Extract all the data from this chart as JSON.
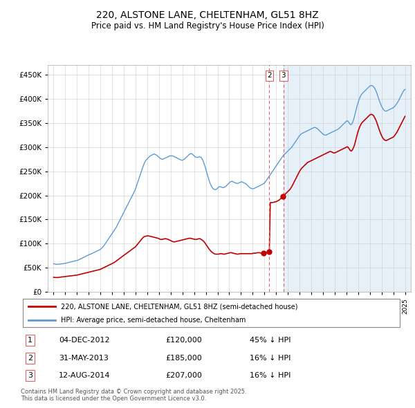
{
  "title": "220, ALSTONE LANE, CHELTENHAM, GL51 8HZ",
  "subtitle": "Price paid vs. HM Land Registry's House Price Index (HPI)",
  "ytick_values": [
    0,
    50000,
    100000,
    150000,
    200000,
    250000,
    300000,
    350000,
    400000,
    450000
  ],
  "ylim": [
    0,
    470000
  ],
  "xlim_start": 1994.5,
  "xlim_end": 2025.5,
  "hpi_color": "#5b9bd5",
  "hpi_alpha": 1.0,
  "price_color": "#c00000",
  "vline_color": "#e06060",
  "shade_color": "#ddeeff",
  "legend_label_price": "220, ALSTONE LANE, CHELTENHAM, GL51 8HZ (semi-detached house)",
  "legend_label_hpi": "HPI: Average price, semi-detached house, Cheltenham",
  "transactions": [
    {
      "num": 1,
      "date": "04-DEC-2012",
      "price": 120000,
      "pct": "45%",
      "x_year": 2012.92
    },
    {
      "num": 2,
      "date": "31-MAY-2013",
      "price": 185000,
      "pct": "16%",
      "x_year": 2013.42
    },
    {
      "num": 3,
      "date": "12-AUG-2014",
      "price": 207000,
      "pct": "16%",
      "x_year": 2014.62
    }
  ],
  "footer_line1": "Contains HM Land Registry data © Crown copyright and database right 2025.",
  "footer_line2": "This data is licensed under the Open Government Licence v3.0.",
  "hpi_monthly_x": [
    1995.0,
    1995.083,
    1995.167,
    1995.25,
    1995.333,
    1995.417,
    1995.5,
    1995.583,
    1995.667,
    1995.75,
    1995.833,
    1995.917,
    1996.0,
    1996.083,
    1996.167,
    1996.25,
    1996.333,
    1996.417,
    1996.5,
    1996.583,
    1996.667,
    1996.75,
    1996.833,
    1996.917,
    1997.0,
    1997.083,
    1997.167,
    1997.25,
    1997.333,
    1997.417,
    1997.5,
    1997.583,
    1997.667,
    1997.75,
    1997.833,
    1997.917,
    1998.0,
    1998.083,
    1998.167,
    1998.25,
    1998.333,
    1998.417,
    1998.5,
    1998.583,
    1998.667,
    1998.75,
    1998.833,
    1998.917,
    1999.0,
    1999.083,
    1999.167,
    1999.25,
    1999.333,
    1999.417,
    1999.5,
    1999.583,
    1999.667,
    1999.75,
    1999.833,
    1999.917,
    2000.0,
    2000.083,
    2000.167,
    2000.25,
    2000.333,
    2000.417,
    2000.5,
    2000.583,
    2000.667,
    2000.75,
    2000.833,
    2000.917,
    2001.0,
    2001.083,
    2001.167,
    2001.25,
    2001.333,
    2001.417,
    2001.5,
    2001.583,
    2001.667,
    2001.75,
    2001.833,
    2001.917,
    2002.0,
    2002.083,
    2002.167,
    2002.25,
    2002.333,
    2002.417,
    2002.5,
    2002.583,
    2002.667,
    2002.75,
    2002.833,
    2002.917,
    2003.0,
    2003.083,
    2003.167,
    2003.25,
    2003.333,
    2003.417,
    2003.5,
    2003.583,
    2003.667,
    2003.75,
    2003.833,
    2003.917,
    2004.0,
    2004.083,
    2004.167,
    2004.25,
    2004.333,
    2004.417,
    2004.5,
    2004.583,
    2004.667,
    2004.75,
    2004.833,
    2004.917,
    2005.0,
    2005.083,
    2005.167,
    2005.25,
    2005.333,
    2005.417,
    2005.5,
    2005.583,
    2005.667,
    2005.75,
    2005.833,
    2005.917,
    2006.0,
    2006.083,
    2006.167,
    2006.25,
    2006.333,
    2006.417,
    2006.5,
    2006.583,
    2006.667,
    2006.75,
    2006.833,
    2006.917,
    2007.0,
    2007.083,
    2007.167,
    2007.25,
    2007.333,
    2007.417,
    2007.5,
    2007.583,
    2007.667,
    2007.75,
    2007.833,
    2007.917,
    2008.0,
    2008.083,
    2008.167,
    2008.25,
    2008.333,
    2008.417,
    2008.5,
    2008.583,
    2008.667,
    2008.75,
    2008.833,
    2008.917,
    2009.0,
    2009.083,
    2009.167,
    2009.25,
    2009.333,
    2009.417,
    2009.5,
    2009.583,
    2009.667,
    2009.75,
    2009.833,
    2009.917,
    2010.0,
    2010.083,
    2010.167,
    2010.25,
    2010.333,
    2010.417,
    2010.5,
    2010.583,
    2010.667,
    2010.75,
    2010.833,
    2010.917,
    2011.0,
    2011.083,
    2011.167,
    2011.25,
    2011.333,
    2011.417,
    2011.5,
    2011.583,
    2011.667,
    2011.75,
    2011.833,
    2011.917,
    2012.0,
    2012.083,
    2012.167,
    2012.25,
    2012.333,
    2012.417,
    2012.5,
    2012.583,
    2012.667,
    2012.75,
    2012.833,
    2012.917,
    2013.0,
    2013.083,
    2013.167,
    2013.25,
    2013.333,
    2013.417,
    2013.5,
    2013.583,
    2013.667,
    2013.75,
    2013.833,
    2013.917,
    2014.0,
    2014.083,
    2014.167,
    2014.25,
    2014.333,
    2014.417,
    2014.5,
    2014.583,
    2014.667,
    2014.75,
    2014.833,
    2014.917,
    2015.0,
    2015.083,
    2015.167,
    2015.25,
    2015.333,
    2015.417,
    2015.5,
    2015.583,
    2015.667,
    2015.75,
    2015.833,
    2015.917,
    2016.0,
    2016.083,
    2016.167,
    2016.25,
    2016.333,
    2016.417,
    2016.5,
    2016.583,
    2016.667,
    2016.75,
    2016.833,
    2016.917,
    2017.0,
    2017.083,
    2017.167,
    2017.25,
    2017.333,
    2017.417,
    2017.5,
    2017.583,
    2017.667,
    2017.75,
    2017.833,
    2017.917,
    2018.0,
    2018.083,
    2018.167,
    2018.25,
    2018.333,
    2018.417,
    2018.5,
    2018.583,
    2018.667,
    2018.75,
    2018.833,
    2018.917,
    2019.0,
    2019.083,
    2019.167,
    2019.25,
    2019.333,
    2019.417,
    2019.5,
    2019.583,
    2019.667,
    2019.75,
    2019.833,
    2019.917,
    2020.0,
    2020.083,
    2020.167,
    2020.25,
    2020.333,
    2020.417,
    2020.5,
    2020.583,
    2020.667,
    2020.75,
    2020.833,
    2020.917,
    2021.0,
    2021.083,
    2021.167,
    2021.25,
    2021.333,
    2021.417,
    2021.5,
    2021.583,
    2021.667,
    2021.75,
    2021.833,
    2021.917,
    2022.0,
    2022.083,
    2022.167,
    2022.25,
    2022.333,
    2022.417,
    2022.5,
    2022.583,
    2022.667,
    2022.75,
    2022.833,
    2022.917,
    2023.0,
    2023.083,
    2023.167,
    2023.25,
    2023.333,
    2023.417,
    2023.5,
    2023.583,
    2023.667,
    2023.75,
    2023.833,
    2023.917,
    2024.0,
    2024.083,
    2024.167,
    2024.25,
    2024.333,
    2024.417,
    2024.5,
    2024.583,
    2024.667,
    2024.75,
    2024.833,
    2024.917,
    2025.0
  ],
  "hpi_monthly_y": [
    58000,
    57500,
    57200,
    57000,
    56800,
    57000,
    57200,
    57500,
    57800,
    58000,
    58200,
    58500,
    59000,
    59500,
    60000,
    60500,
    61000,
    61500,
    62000,
    62500,
    63000,
    63500,
    64000,
    64500,
    65000,
    65500,
    66500,
    67500,
    68500,
    69500,
    70500,
    71500,
    72500,
    73500,
    74500,
    75500,
    76500,
    77500,
    78000,
    79000,
    80000,
    81000,
    82000,
    83000,
    84000,
    85000,
    86000,
    87000,
    88000,
    90000,
    92000,
    94000,
    97000,
    100000,
    103000,
    106000,
    109000,
    112000,
    115000,
    118000,
    121000,
    124000,
    127000,
    130000,
    133000,
    137000,
    141000,
    145000,
    149000,
    153000,
    157000,
    161000,
    165000,
    169000,
    173000,
    177000,
    181000,
    185000,
    189000,
    193000,
    197000,
    201000,
    205000,
    209000,
    214000,
    220000,
    226000,
    232000,
    238000,
    244000,
    250000,
    256000,
    262000,
    267000,
    271000,
    274000,
    276000,
    278000,
    280000,
    282000,
    283000,
    284000,
    285000,
    286000,
    285000,
    284000,
    283000,
    281000,
    279000,
    277000,
    276000,
    275000,
    275000,
    276000,
    277000,
    278000,
    279000,
    280000,
    281000,
    282000,
    282000,
    282000,
    282000,
    281000,
    280000,
    279000,
    278000,
    277000,
    276000,
    275000,
    274000,
    273000,
    273000,
    274000,
    275000,
    277000,
    279000,
    281000,
    283000,
    285000,
    286000,
    287000,
    286000,
    284000,
    282000,
    280000,
    279000,
    279000,
    279000,
    280000,
    280000,
    279000,
    276000,
    272000,
    267000,
    261000,
    254000,
    247000,
    240000,
    233000,
    227000,
    222000,
    218000,
    215000,
    213000,
    212000,
    212000,
    213000,
    215000,
    217000,
    218000,
    218000,
    217000,
    216000,
    216000,
    217000,
    218000,
    220000,
    222000,
    224000,
    226000,
    228000,
    229000,
    229000,
    228000,
    227000,
    226000,
    225000,
    225000,
    225000,
    226000,
    227000,
    228000,
    228000,
    227000,
    226000,
    225000,
    224000,
    222000,
    220000,
    218000,
    216000,
    215000,
    214000,
    214000,
    214000,
    215000,
    216000,
    217000,
    218000,
    219000,
    220000,
    221000,
    222000,
    223000,
    224000,
    226000,
    228000,
    231000,
    234000,
    237000,
    240000,
    243000,
    246000,
    249000,
    252000,
    255000,
    258000,
    261000,
    264000,
    267000,
    270000,
    273000,
    276000,
    279000,
    282000,
    284000,
    286000,
    288000,
    290000,
    292000,
    294000,
    296000,
    298000,
    300000,
    303000,
    306000,
    309000,
    312000,
    315000,
    318000,
    321000,
    324000,
    326000,
    328000,
    329000,
    330000,
    331000,
    332000,
    333000,
    334000,
    335000,
    336000,
    337000,
    338000,
    339000,
    340000,
    341000,
    341000,
    340000,
    339000,
    337000,
    335000,
    333000,
    331000,
    329000,
    327000,
    326000,
    325000,
    325000,
    326000,
    327000,
    328000,
    329000,
    330000,
    331000,
    332000,
    333000,
    334000,
    335000,
    336000,
    337000,
    338000,
    340000,
    342000,
    344000,
    346000,
    348000,
    350000,
    352000,
    354000,
    355000,
    353000,
    350000,
    347000,
    347000,
    350000,
    355000,
    362000,
    370000,
    378000,
    386000,
    393000,
    399000,
    404000,
    408000,
    411000,
    413000,
    415000,
    417000,
    419000,
    421000,
    423000,
    425000,
    427000,
    428000,
    428000,
    427000,
    425000,
    422000,
    418000,
    413000,
    407000,
    401000,
    395000,
    390000,
    385000,
    381000,
    378000,
    376000,
    375000,
    375000,
    376000,
    377000,
    378000,
    379000,
    380000,
    381000,
    382000,
    384000,
    386000,
    389000,
    392000,
    395000,
    399000,
    403000,
    407000,
    411000,
    415000,
    418000,
    420000
  ],
  "price_monthly_x": [
    1995.0,
    1995.083,
    1995.167,
    1995.25,
    1995.333,
    1995.417,
    1995.5,
    1995.583,
    1995.667,
    1995.75,
    1995.833,
    1995.917,
    1996.0,
    1996.083,
    1996.167,
    1996.25,
    1996.333,
    1996.417,
    1996.5,
    1996.583,
    1996.667,
    1996.75,
    1996.833,
    1996.917,
    1997.0,
    1997.083,
    1997.167,
    1997.25,
    1997.333,
    1997.417,
    1997.5,
    1997.583,
    1997.667,
    1997.75,
    1997.833,
    1997.917,
    1998.0,
    1998.083,
    1998.167,
    1998.25,
    1998.333,
    1998.417,
    1998.5,
    1998.583,
    1998.667,
    1998.75,
    1998.833,
    1998.917,
    1999.0,
    1999.083,
    1999.167,
    1999.25,
    1999.333,
    1999.417,
    1999.5,
    1999.583,
    1999.667,
    1999.75,
    1999.833,
    1999.917,
    2000.0,
    2000.083,
    2000.167,
    2000.25,
    2000.333,
    2000.417,
    2000.5,
    2000.583,
    2000.667,
    2000.75,
    2000.833,
    2000.917,
    2001.0,
    2001.083,
    2001.167,
    2001.25,
    2001.333,
    2001.417,
    2001.5,
    2001.583,
    2001.667,
    2001.75,
    2001.833,
    2001.917,
    2002.0,
    2002.083,
    2002.167,
    2002.25,
    2002.333,
    2002.417,
    2002.5,
    2002.583,
    2002.667,
    2002.75,
    2002.833,
    2002.917,
    2003.0,
    2003.083,
    2003.167,
    2003.25,
    2003.333,
    2003.417,
    2003.5,
    2003.583,
    2003.667,
    2003.75,
    2003.833,
    2003.917,
    2004.0,
    2004.083,
    2004.167,
    2004.25,
    2004.333,
    2004.417,
    2004.5,
    2004.583,
    2004.667,
    2004.75,
    2004.833,
    2004.917,
    2005.0,
    2005.083,
    2005.167,
    2005.25,
    2005.333,
    2005.417,
    2005.5,
    2005.583,
    2005.667,
    2005.75,
    2005.833,
    2005.917,
    2006.0,
    2006.083,
    2006.167,
    2006.25,
    2006.333,
    2006.417,
    2006.5,
    2006.583,
    2006.667,
    2006.75,
    2006.833,
    2006.917,
    2007.0,
    2007.083,
    2007.167,
    2007.25,
    2007.333,
    2007.417,
    2007.5,
    2007.583,
    2007.667,
    2007.75,
    2007.833,
    2007.917,
    2008.0,
    2008.083,
    2008.167,
    2008.25,
    2008.333,
    2008.417,
    2008.5,
    2008.583,
    2008.667,
    2008.75,
    2008.833,
    2008.917,
    2009.0,
    2009.083,
    2009.167,
    2009.25,
    2009.333,
    2009.417,
    2009.5,
    2009.583,
    2009.667,
    2009.75,
    2009.833,
    2009.917,
    2010.0,
    2010.083,
    2010.167,
    2010.25,
    2010.333,
    2010.417,
    2010.5,
    2010.583,
    2010.667,
    2010.75,
    2010.833,
    2010.917,
    2011.0,
    2011.083,
    2011.167,
    2011.25,
    2011.333,
    2011.417,
    2011.5,
    2011.583,
    2011.667,
    2011.75,
    2011.833,
    2011.917,
    2012.0,
    2012.083,
    2012.167,
    2012.25,
    2012.333,
    2012.417,
    2012.5,
    2012.583,
    2012.667,
    2012.75,
    2012.833,
    2012.917,
    2013.0,
    2013.083,
    2013.167,
    2013.25,
    2013.333,
    2013.417,
    2013.5,
    2013.583,
    2013.667,
    2013.75,
    2013.833,
    2013.917,
    2014.0,
    2014.083,
    2014.167,
    2014.25,
    2014.333,
    2014.417,
    2014.5,
    2014.583,
    2014.667,
    2014.75,
    2014.833,
    2014.917,
    2015.0,
    2015.083,
    2015.167,
    2015.25,
    2015.333,
    2015.417,
    2015.5,
    2015.583,
    2015.667,
    2015.75,
    2015.833,
    2015.917,
    2016.0,
    2016.083,
    2016.167,
    2016.25,
    2016.333,
    2016.417,
    2016.5,
    2016.583,
    2016.667,
    2016.75,
    2016.833,
    2016.917,
    2017.0,
    2017.083,
    2017.167,
    2017.25,
    2017.333,
    2017.417,
    2017.5,
    2017.583,
    2017.667,
    2017.75,
    2017.833,
    2017.917,
    2018.0,
    2018.083,
    2018.167,
    2018.25,
    2018.333,
    2018.417,
    2018.5,
    2018.583,
    2018.667,
    2018.75,
    2018.833,
    2018.917,
    2019.0,
    2019.083,
    2019.167,
    2019.25,
    2019.333,
    2019.417,
    2019.5,
    2019.583,
    2019.667,
    2019.75,
    2019.833,
    2019.917,
    2020.0,
    2020.083,
    2020.167,
    2020.25,
    2020.333,
    2020.417,
    2020.5,
    2020.583,
    2020.667,
    2020.75,
    2020.833,
    2020.917,
    2021.0,
    2021.083,
    2021.167,
    2021.25,
    2021.333,
    2021.417,
    2021.5,
    2021.583,
    2021.667,
    2021.75,
    2021.833,
    2021.917,
    2022.0,
    2022.083,
    2022.167,
    2022.25,
    2022.333,
    2022.417,
    2022.5,
    2022.583,
    2022.667,
    2022.75,
    2022.833,
    2022.917,
    2023.0,
    2023.083,
    2023.167,
    2023.25,
    2023.333,
    2023.417,
    2023.5,
    2023.583,
    2023.667,
    2023.75,
    2023.833,
    2023.917,
    2024.0,
    2024.083,
    2024.167,
    2024.25,
    2024.333,
    2024.417,
    2024.5,
    2024.583,
    2024.667,
    2024.75,
    2024.833,
    2024.917,
    2025.0
  ],
  "price_monthly_y": [
    30000,
    29800,
    29600,
    29400,
    29500,
    29700,
    30000,
    30200,
    30500,
    30800,
    31000,
    31200,
    31500,
    31800,
    32000,
    32200,
    32500,
    32800,
    33000,
    33200,
    33500,
    33800,
    34000,
    34300,
    34500,
    35000,
    35500,
    36000,
    36500,
    37000,
    37500,
    38000,
    38500,
    39000,
    39500,
    40000,
    40500,
    41000,
    41500,
    42000,
    42500,
    43000,
    43500,
    44000,
    44500,
    45000,
    45500,
    46000,
    46500,
    47500,
    48500,
    49500,
    50500,
    51500,
    52500,
    53500,
    54500,
    55500,
    56500,
    57500,
    58500,
    59500,
    60500,
    62000,
    63500,
    65000,
    66500,
    68000,
    69500,
    71000,
    72500,
    74000,
    75500,
    77000,
    78500,
    80000,
    81500,
    83000,
    84500,
    86000,
    87500,
    89000,
    90500,
    92000,
    93500,
    96000,
    98500,
    101000,
    103500,
    106000,
    108500,
    111000,
    113000,
    114500,
    115000,
    115500,
    116000,
    116000,
    115500,
    115000,
    114500,
    114000,
    113500,
    113000,
    112500,
    112000,
    111500,
    111000,
    110000,
    109000,
    108500,
    108500,
    109000,
    109500,
    110000,
    110000,
    109500,
    109000,
    108000,
    107000,
    106000,
    105000,
    104000,
    103500,
    103500,
    104000,
    104500,
    105000,
    105500,
    106000,
    106500,
    107000,
    107500,
    108000,
    108500,
    109000,
    109500,
    110000,
    110500,
    111000,
    111000,
    110500,
    110000,
    109500,
    109000,
    108500,
    108500,
    109000,
    109500,
    110000,
    110000,
    109000,
    107500,
    106000,
    104000,
    101500,
    98500,
    95500,
    92500,
    89500,
    87000,
    84500,
    82500,
    81000,
    79500,
    78500,
    78000,
    78000,
    78000,
    78000,
    78500,
    79000,
    79000,
    78500,
    78000,
    78000,
    78500,
    79000,
    79500,
    80000,
    80500,
    81000,
    81000,
    80500,
    80000,
    79500,
    79000,
    78500,
    78000,
    78000,
    78500,
    79000,
    79000,
    79000,
    79000,
    79000,
    79000,
    79000,
    79000,
    79000,
    79000,
    79000,
    79000,
    79000,
    79500,
    80000,
    80000,
    80000,
    80500,
    81000,
    81000,
    81000,
    80500,
    80000,
    80000,
    80500,
    80500,
    81000,
    81500,
    82000,
    82500,
    83000,
    185000,
    185000,
    185000,
    185500,
    186000,
    186500,
    187000,
    188000,
    189000,
    190000,
    192000,
    194000,
    196000,
    198000,
    200000,
    202000,
    204000,
    206000,
    208000,
    210000,
    212000,
    215000,
    218000,
    222000,
    226000,
    230000,
    234000,
    238000,
    242000,
    246000,
    250000,
    253000,
    256000,
    258000,
    260000,
    262000,
    264000,
    266000,
    268000,
    269000,
    270000,
    271000,
    272000,
    273000,
    274000,
    275000,
    276000,
    277000,
    278000,
    279000,
    280000,
    281000,
    282000,
    283000,
    284000,
    285000,
    286000,
    287000,
    288000,
    289000,
    290000,
    291000,
    291000,
    290000,
    289000,
    288000,
    288000,
    289000,
    290000,
    291000,
    292000,
    293000,
    294000,
    295000,
    296000,
    297000,
    298000,
    299000,
    300000,
    301000,
    299000,
    296000,
    293000,
    292000,
    294000,
    298000,
    303000,
    310000,
    318000,
    326000,
    333000,
    339000,
    344000,
    348000,
    351000,
    353000,
    355000,
    357000,
    359000,
    361000,
    363000,
    365000,
    367000,
    368000,
    368000,
    367000,
    365000,
    361000,
    357000,
    352000,
    346000,
    340000,
    334000,
    329000,
    324000,
    320000,
    317000,
    315000,
    314000,
    314000,
    315000,
    316000,
    317000,
    318000,
    319000,
    320000,
    321000,
    323000,
    326000,
    329000,
    332000,
    336000,
    340000,
    344000,
    348000,
    352000,
    356000,
    360000,
    364000
  ]
}
